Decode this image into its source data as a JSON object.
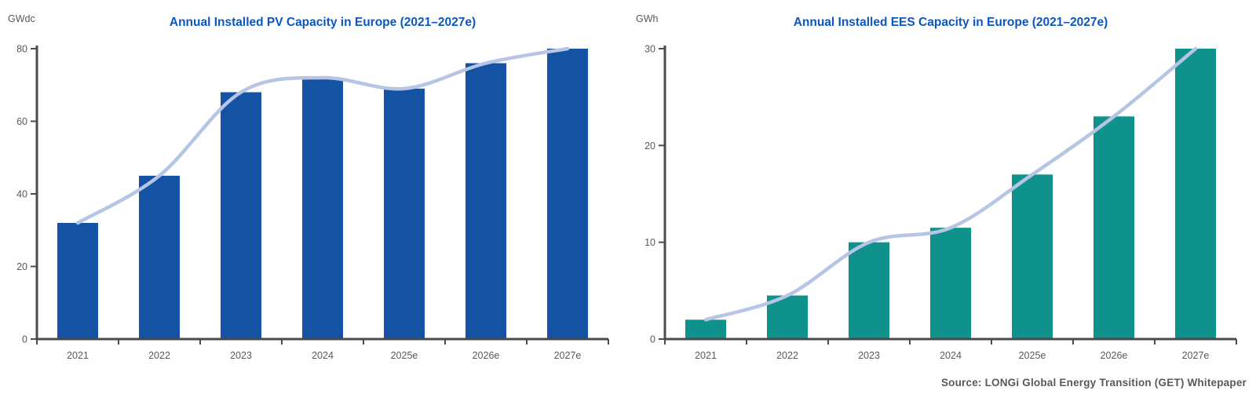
{
  "page": {
    "background_color": "#ffffff",
    "source_note": "Source: LONGi Global Energy Transition (GET) Whitepaper"
  },
  "colors": {
    "title_blue": "#0b57c2",
    "pv_bar_blue": "#1453a4",
    "ees_bar_teal": "#0f918c",
    "trend_line": "#b6c4e6",
    "axis_gray": "#4b4b4b",
    "label_gray": "#595959"
  },
  "chart_data": [
    {
      "type": "bar",
      "title": "Annual Installed PV Capacity in Europe (2021–2027e)",
      "unit_label": "GWdc",
      "categories": [
        "2021",
        "2022",
        "2023",
        "2024",
        "2025e",
        "2026e",
        "2027e"
      ],
      "values": [
        32,
        45,
        68,
        72,
        69,
        76,
        80
      ],
      "line_series": {
        "name": "trend",
        "values": [
          32,
          45,
          68,
          72,
          69,
          76,
          80
        ]
      },
      "ylim": [
        0,
        80
      ],
      "yticks": [
        0,
        20,
        40,
        60,
        80
      ],
      "grid": "off",
      "legend": "none",
      "bar_color": "#1453a4",
      "line_color": "#b6c4e6"
    },
    {
      "type": "bar",
      "title": "Annual Installed EES Capacity in Europe (2021–2027e)",
      "unit_label": "GWh",
      "categories": [
        "2021",
        "2022",
        "2023",
        "2024",
        "2025e",
        "2026e",
        "2027e"
      ],
      "values": [
        2,
        4.5,
        10,
        11.5,
        17,
        23,
        30
      ],
      "line_series": {
        "name": "trend",
        "values": [
          2,
          4.5,
          10,
          11.5,
          17,
          23,
          30
        ]
      },
      "ylim": [
        0,
        30
      ],
      "yticks": [
        0,
        10,
        20,
        30
      ],
      "grid": "off",
      "legend": "none",
      "bar_color": "#0f918c",
      "line_color": "#b6c4e6"
    }
  ]
}
